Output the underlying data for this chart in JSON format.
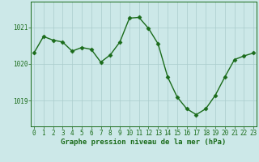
{
  "hours": [
    0,
    1,
    2,
    3,
    4,
    5,
    6,
    7,
    8,
    9,
    10,
    11,
    12,
    13,
    14,
    15,
    16,
    17,
    18,
    19,
    20,
    21,
    22,
    23
  ],
  "pressure": [
    1020.3,
    1020.75,
    1020.65,
    1020.6,
    1020.35,
    1020.45,
    1020.4,
    1020.05,
    1020.25,
    1020.6,
    1021.25,
    1021.27,
    1020.97,
    1020.55,
    1019.65,
    1019.1,
    1018.78,
    1018.62,
    1018.78,
    1019.15,
    1019.65,
    1020.12,
    1020.22,
    1020.3
  ],
  "line_color": "#1a6b1a",
  "marker": "D",
  "marker_size": 2.5,
  "bg_color": "#cce8e8",
  "plot_bg_color": "#cce8e8",
  "grid_color": "#aacccc",
  "ytick_values": [
    1019,
    1020,
    1021
  ],
  "ylim": [
    1018.3,
    1021.7
  ],
  "xlim": [
    -0.3,
    23.3
  ],
  "xlabel": "Graphe pression niveau de la mer (hPa)",
  "xlabel_fontsize": 6.5,
  "xlabel_color": "#1a6b1a",
  "tick_fontsize": 5.5,
  "tick_color": "#1a6b1a",
  "line_width": 1.0
}
